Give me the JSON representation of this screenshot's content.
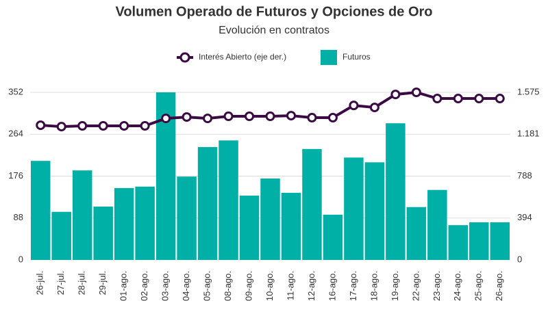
{
  "chart_data": {
    "type": "bar_line",
    "title": "Volumen Operado de Futuros y Opciones de Oro",
    "subtitle": "Evolución en contratos",
    "categories": [
      "26-jul.",
      "27-jul.",
      "28-jul.",
      "29-jul.",
      "01-ago.",
      "02-ago.",
      "03-ago.",
      "04-ago.",
      "05-ago.",
      "08-ago.",
      "09-ago.",
      "10-ago.",
      "11-ago.",
      "12-ago.",
      "16-ago.",
      "17-ago.",
      "18-ago.",
      "19-ago.",
      "22-ago.",
      "23-ago.",
      "24-ago.",
      "25-ago.",
      "26-ago."
    ],
    "series": [
      {
        "name": "Interés Abierto (eje der.)",
        "type": "line",
        "axis": "y2",
        "color": "#3b0a45",
        "values": [
          1266,
          1253,
          1260,
          1260,
          1260,
          1260,
          1330,
          1343,
          1330,
          1350,
          1350,
          1350,
          1356,
          1337,
          1337,
          1452,
          1433,
          1555,
          1575,
          1517,
          1517,
          1517,
          1517
        ]
      },
      {
        "name": "Futuros",
        "type": "bar",
        "color": "#00b0a6",
        "values": [
          208,
          101,
          188,
          112,
          151,
          154,
          352,
          175,
          237,
          251,
          135,
          171,
          141,
          233,
          95,
          215,
          205,
          287,
          111,
          147,
          73,
          79,
          79
        ]
      }
    ],
    "ylim": [
      0,
      352
    ],
    "yticks": [
      0,
      88,
      176,
      264,
      352
    ],
    "y2lim": [
      0,
      1575
    ],
    "y2ticks": [
      0,
      394,
      788,
      {
        "value": 1181,
        "label": "1.181"
      },
      {
        "value": 1575,
        "label": "1.575"
      }
    ],
    "grid": true,
    "legend": "top"
  }
}
